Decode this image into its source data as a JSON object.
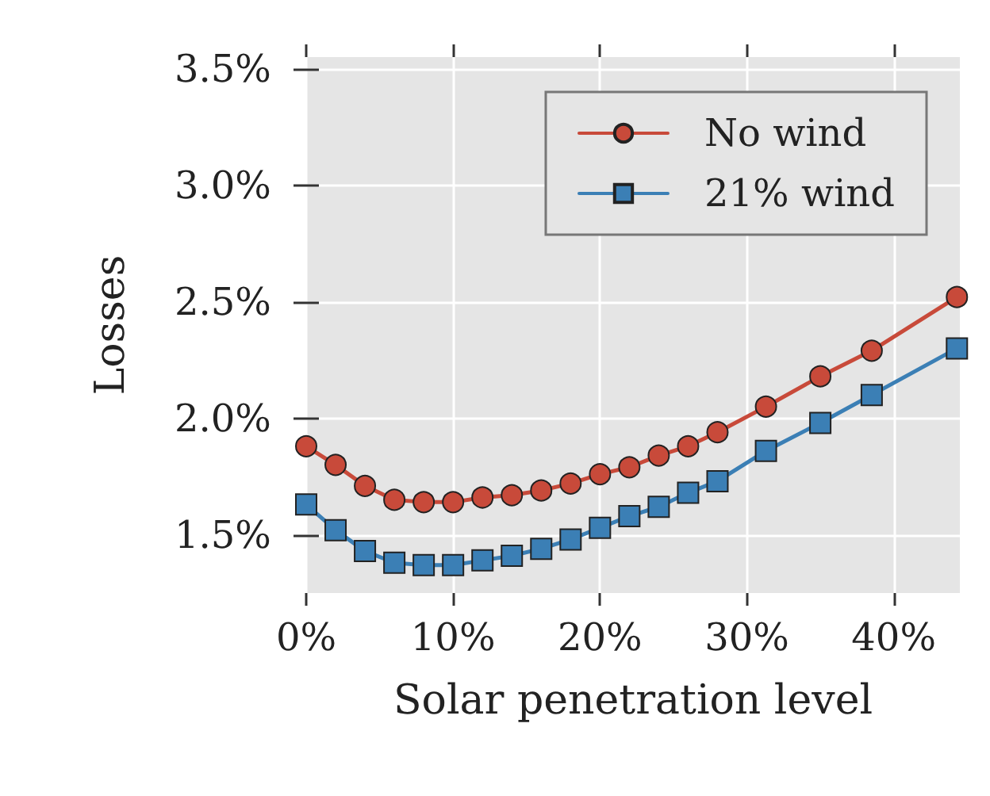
{
  "chart_data": {
    "type": "line",
    "xlabel": "Solar penetration level",
    "ylabel": "Losses",
    "x": [
      0,
      2,
      4,
      6,
      8,
      10,
      12,
      14,
      16,
      18,
      20,
      22,
      24,
      26,
      28,
      31.3,
      35,
      38.5,
      44.3
    ],
    "series": [
      {
        "name": "No wind",
        "color": "#c84a3a",
        "marker": "circle",
        "values": [
          1.88,
          1.8,
          1.71,
          1.65,
          1.64,
          1.64,
          1.66,
          1.67,
          1.69,
          1.72,
          1.76,
          1.79,
          1.84,
          1.88,
          1.94,
          2.05,
          2.18,
          2.29,
          2.52
        ]
      },
      {
        "name": "21% wind",
        "color": "#3b7fb5",
        "marker": "square",
        "values": [
          1.63,
          1.52,
          1.43,
          1.38,
          1.37,
          1.37,
          1.39,
          1.41,
          1.44,
          1.48,
          1.53,
          1.58,
          1.62,
          1.68,
          1.73,
          1.86,
          1.98,
          2.1,
          2.3
        ]
      }
    ],
    "xlim": [
      0,
      44.5
    ],
    "xticks": [
      {
        "value": 0,
        "label": "0%"
      },
      {
        "value": 10,
        "label": "10%"
      },
      {
        "value": 20,
        "label": "20%"
      },
      {
        "value": 30,
        "label": "30%"
      },
      {
        "value": 40,
        "label": "40%"
      }
    ],
    "ylim": [
      1.25,
      3.55
    ],
    "yticks": [
      {
        "value": 1.5,
        "label": "1.5%"
      },
      {
        "value": 2,
        "label": "2.0%"
      },
      {
        "value": 2.5,
        "label": "2.5%"
      },
      {
        "value": 3,
        "label": "3.0%"
      },
      {
        "value": 3.5,
        "label": "3.5%"
      }
    ],
    "grid": true,
    "legend": "top right",
    "line_style": "solid"
  }
}
